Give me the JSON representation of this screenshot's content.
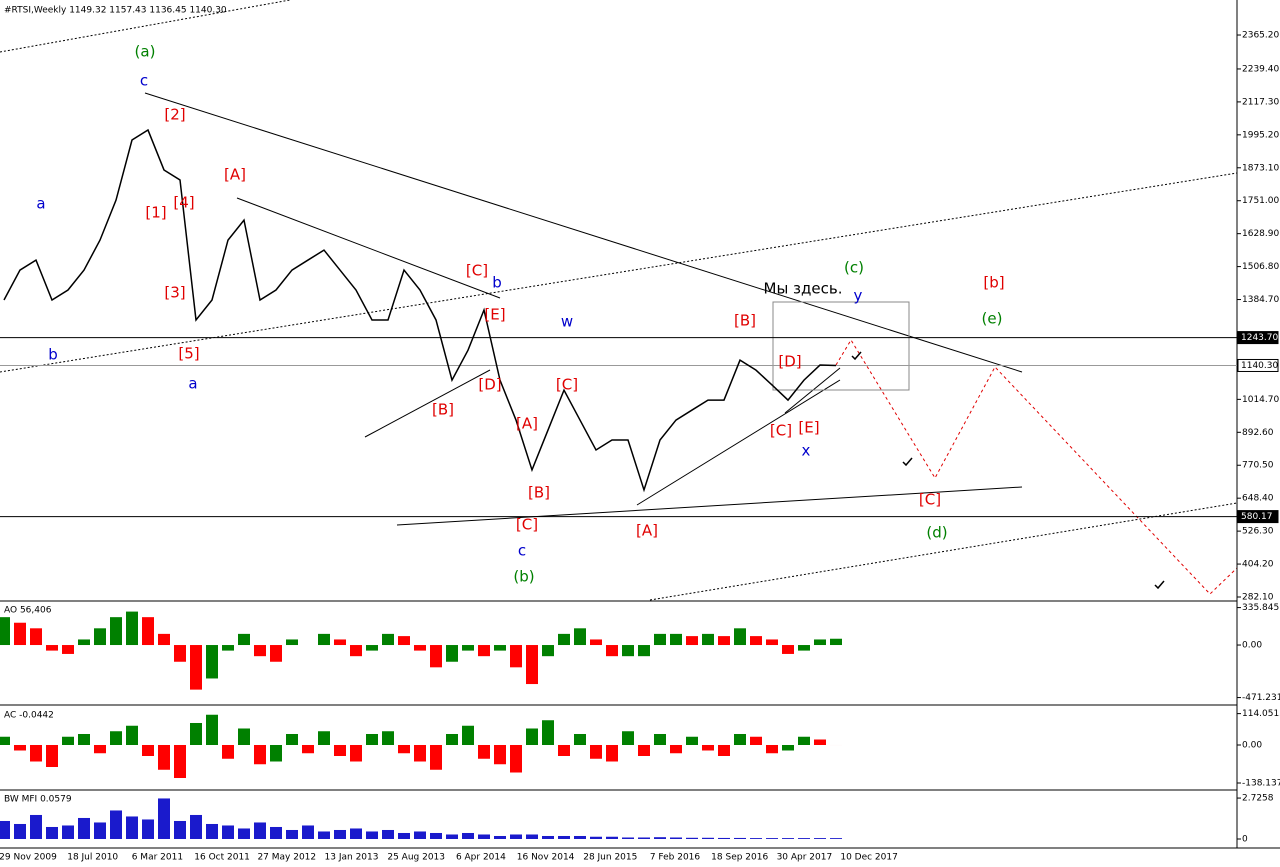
{
  "chart_data": [
    {
      "type": "line",
      "title": "#RTSI,Weekly  1149.32 1157.43 1136.45 1140.30",
      "color": "#000000",
      "values": [
        1383,
        1494,
        1531,
        1383,
        1420,
        1494,
        1605,
        1753,
        1976,
        2013,
        1865,
        1828,
        1309,
        1383,
        1605,
        1679,
        1383,
        1420,
        1494,
        1531,
        1568,
        1494,
        1420,
        1309,
        1309,
        1494,
        1420,
        1309,
        1086,
        1197,
        1346,
        1086,
        938,
        753,
        901,
        1049,
        938,
        827,
        864,
        864,
        679,
        864,
        938,
        975,
        1012,
        1012,
        1160,
        1123,
        1068,
        1012,
        1086,
        1142,
        1140.3
      ],
      "ylim": [
        271,
        2495
      ],
      "yticks": [
        {
          "value": 2365.2,
          "label": "2365.20"
        },
        {
          "value": 2239.4,
          "label": "2239.40"
        },
        {
          "value": 2117.3,
          "label": "2117.30"
        },
        {
          "value": 1995.2,
          "label": "1995.20"
        },
        {
          "value": 1873.1,
          "label": "1873.10"
        },
        {
          "value": 1751,
          "label": "1751.00"
        },
        {
          "value": 1628.9,
          "label": "1628.90"
        },
        {
          "value": 1506.8,
          "label": "1506.80"
        },
        {
          "value": 1384.7,
          "label": "1384.70"
        },
        {
          "value": 1014.7,
          "label": "1014.70"
        },
        {
          "value": 892.6,
          "label": "892.60"
        },
        {
          "value": 770.5,
          "label": "770.50"
        },
        {
          "value": 648.4,
          "label": "648.40"
        },
        {
          "value": 526.3,
          "label": "526.30"
        },
        {
          "value": 404.2,
          "label": "404.20"
        },
        {
          "value": 282.1,
          "label": "282.10"
        }
      ],
      "price_labels": [
        {
          "value": 1243.7,
          "label": "1243.70"
        },
        {
          "value": 1140.3,
          "label": "1140.30"
        },
        {
          "value": 580.17,
          "label": "580.17"
        }
      ],
      "xticks": [
        "29 Nov 2009",
        "18 Jul 2010",
        "6 Mar 2011",
        "16 Oct 2011",
        "27 May 2012",
        "13 Jan 2013",
        "25 Aug 2013",
        "6 Apr 2014",
        "16 Nov 2014",
        "28 Jun 2015",
        "7 Feb 2016",
        "18 Sep 2016",
        "30 Apr 2017",
        "10 Dec 2017"
      ],
      "annotations": [
        {
          "text": "(a)",
          "color": "#008000"
        },
        {
          "text": "c",
          "color": "#0000cc"
        },
        {
          "text": "[2]",
          "color": "#e00000"
        },
        {
          "text": "[A]",
          "color": "#e00000"
        },
        {
          "text": "a",
          "color": "#0000cc"
        },
        {
          "text": "[1]",
          "color": "#e00000"
        },
        {
          "text": "[4]",
          "color": "#e00000"
        },
        {
          "text": "[3]",
          "color": "#e00000"
        },
        {
          "text": "b",
          "color": "#0000cc"
        },
        {
          "text": "[5]",
          "color": "#e00000"
        },
        {
          "text": "a",
          "color": "#0000cc"
        },
        {
          "text": "[C]",
          "color": "#e00000"
        },
        {
          "text": "b",
          "color": "#0000cc"
        },
        {
          "text": "[E]",
          "color": "#e00000"
        },
        {
          "text": "w",
          "color": "#0000cc"
        },
        {
          "text": "[D]",
          "color": "#e00000"
        },
        {
          "text": "[B]",
          "color": "#e00000"
        },
        {
          "text": "[C]",
          "color": "#e00000"
        },
        {
          "text": "[A]",
          "color": "#e00000"
        },
        {
          "text": "[B]",
          "color": "#e00000"
        },
        {
          "text": "[C]",
          "color": "#e00000"
        },
        {
          "text": "c",
          "color": "#0000cc"
        },
        {
          "text": "(b)",
          "color": "#008000"
        },
        {
          "text": "[A]",
          "color": "#e00000"
        },
        {
          "text": "[B]",
          "color": "#e00000"
        },
        {
          "text": "[D]",
          "color": "#e00000"
        },
        {
          "text": "[C]",
          "color": "#e00000"
        },
        {
          "text": "[E]",
          "color": "#e00000"
        },
        {
          "text": "x",
          "color": "#0000cc"
        },
        {
          "text": "(c)",
          "color": "#008000"
        },
        {
          "text": "Мы здесь.",
          "color": "#000000"
        },
        {
          "text": "y",
          "color": "#0000cc"
        },
        {
          "text": "[b]",
          "color": "#e00000"
        },
        {
          "text": "(e)",
          "color": "#008000"
        },
        {
          "text": "[C]",
          "color": "#e00000"
        },
        {
          "text": "(d)",
          "color": "#008000"
        }
      ]
    },
    {
      "type": "histogram",
      "title": "AO 56,406",
      "color_up": "#008000",
      "color_down": "#ff0000",
      "values": [
        250,
        200,
        150,
        -50,
        -80,
        50,
        150,
        250,
        300,
        250,
        100,
        -150,
        -400,
        -300,
        -50,
        100,
        -100,
        -150,
        50,
        0,
        100,
        50,
        -100,
        -50,
        100,
        80,
        -50,
        -200,
        -150,
        -50,
        -100,
        -50,
        -200,
        -350,
        -100,
        100,
        150,
        50,
        -100,
        -100,
        -100,
        100,
        100,
        80,
        100,
        80,
        150,
        80,
        50,
        -80,
        -50,
        50,
        56.406
      ],
      "ylim": [
        -520,
        377
      ],
      "yticks": [
        {
          "value": 335.845,
          "label": "335.845"
        },
        {
          "value": 0,
          "label": "0.00"
        },
        {
          "value": -471.231,
          "label": "-471.231"
        }
      ]
    },
    {
      "type": "histogram",
      "title": "AC -0.0442",
      "color_up": "#008000",
      "color_down": "#ff0000",
      "values": [
        30,
        -20,
        -60,
        -80,
        30,
        40,
        -30,
        50,
        70,
        -40,
        -90,
        -120,
        80,
        110,
        -50,
        60,
        -70,
        -60,
        40,
        -30,
        50,
        -40,
        -60,
        40,
        50,
        -30,
        -60,
        -90,
        40,
        70,
        -50,
        -70,
        -100,
        60,
        90,
        -40,
        40,
        -50,
        -60,
        50,
        -40,
        40,
        -30,
        30,
        -20,
        -40,
        40,
        30,
        -30,
        -20,
        30,
        20,
        -0.0442
      ],
      "ylim": [
        -163.6,
        134.5
      ],
      "yticks": [
        {
          "value": 114.0515,
          "label": "114.0515"
        },
        {
          "value": 0,
          "label": "0.00"
        },
        {
          "value": -138.1374,
          "label": "-138.1374"
        }
      ]
    },
    {
      "type": "histogram",
      "title": "BW MFI 0.0579",
      "color": "#1a1acc",
      "values": [
        1.2,
        1.0,
        1.6,
        0.8,
        0.9,
        1.4,
        1.1,
        1.9,
        1.5,
        1.3,
        2.7,
        1.2,
        1.6,
        1.0,
        0.9,
        0.7,
        1.1,
        0.8,
        0.6,
        0.9,
        0.5,
        0.6,
        0.7,
        0.5,
        0.6,
        0.4,
        0.5,
        0.4,
        0.3,
        0.4,
        0.3,
        0.2,
        0.3,
        0.3,
        0.2,
        0.2,
        0.2,
        0.15,
        0.15,
        0.1,
        0.1,
        0.12,
        0.1,
        0.08,
        0.08,
        0.07,
        0.07,
        0.06,
        0.06,
        0.06,
        0.06,
        0.06,
        0.0579
      ],
      "ylim": [
        -0.6,
        3.13
      ],
      "yticks": [
        {
          "value": 2.7258,
          "label": "2.7258"
        },
        {
          "value": 0,
          "label": "0"
        }
      ]
    }
  ]
}
